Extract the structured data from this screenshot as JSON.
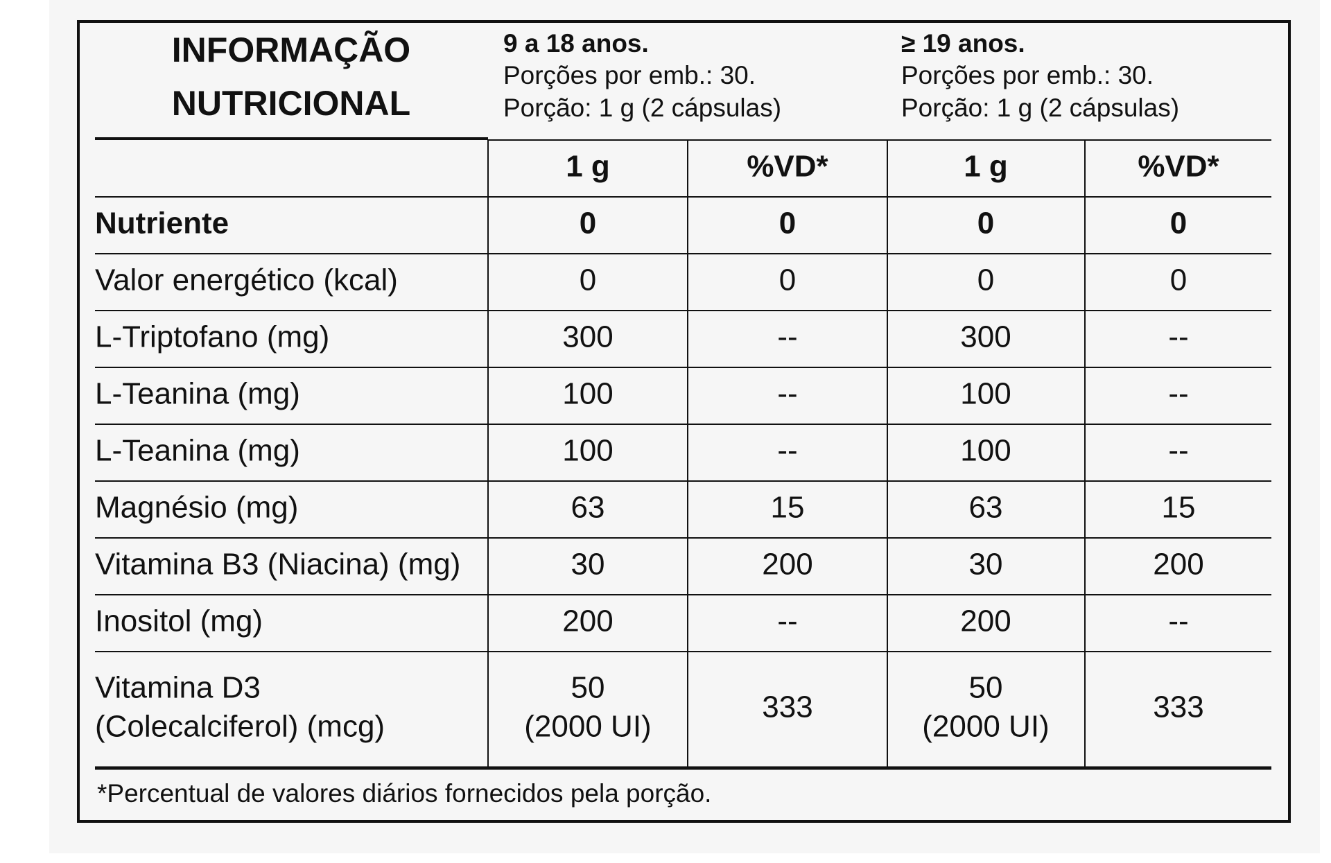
{
  "header": {
    "title_lines": [
      "INFORMAÇÃO",
      "NUTRICIONAL"
    ],
    "groups": [
      {
        "title": "9 a 18 anos.",
        "lines": [
          "Porções por emb.: 30.",
          "Porção: 1 g (2 cápsulas)"
        ]
      },
      {
        "title": "≥ 19 anos.",
        "lines": [
          "Porções por emb.: 30.",
          "Porção: 1 g (2 cápsulas)"
        ]
      }
    ]
  },
  "table": {
    "columns": [
      "1 g",
      "%VD*",
      "1 g",
      "%VD*"
    ],
    "rows": [
      [
        [
          "Nutriente"
        ],
        [
          "0"
        ],
        [
          "0"
        ],
        [
          "0"
        ],
        [
          "0"
        ]
      ],
      [
        [
          "Valor energético (kcal)"
        ],
        [
          "0"
        ],
        [
          "0"
        ],
        [
          "0"
        ],
        [
          "0"
        ]
      ],
      [
        [
          "L-Triptofano (mg)"
        ],
        [
          "300"
        ],
        [
          "--"
        ],
        [
          "300"
        ],
        [
          "--"
        ]
      ],
      [
        [
          "L-Teanina (mg)"
        ],
        [
          "100"
        ],
        [
          "--"
        ],
        [
          "100"
        ],
        [
          "--"
        ]
      ],
      [
        [
          "L-Teanina (mg)"
        ],
        [
          "100"
        ],
        [
          "--"
        ],
        [
          "100"
        ],
        [
          "--"
        ]
      ],
      [
        [
          "Magnésio (mg)"
        ],
        [
          "63"
        ],
        [
          "15"
        ],
        [
          "63"
        ],
        [
          "15"
        ]
      ],
      [
        [
          "Vitamina B3 (Niacina) (mg)"
        ],
        [
          "30"
        ],
        [
          "200"
        ],
        [
          "30"
        ],
        [
          "200"
        ]
      ],
      [
        [
          "Inositol (mg)"
        ],
        [
          "200"
        ],
        [
          "--"
        ],
        [
          "200"
        ],
        [
          "--"
        ]
      ],
      [
        [
          "Vitamina D3",
          "(Colecalciferol) (mcg)"
        ],
        [
          "50",
          "(2000 UI)"
        ],
        [
          "333"
        ],
        [
          "50",
          "(2000 UI)"
        ],
        [
          "333"
        ]
      ]
    ]
  },
  "footnote": "*Percentual de valores diários fornecidos pela porção."
}
